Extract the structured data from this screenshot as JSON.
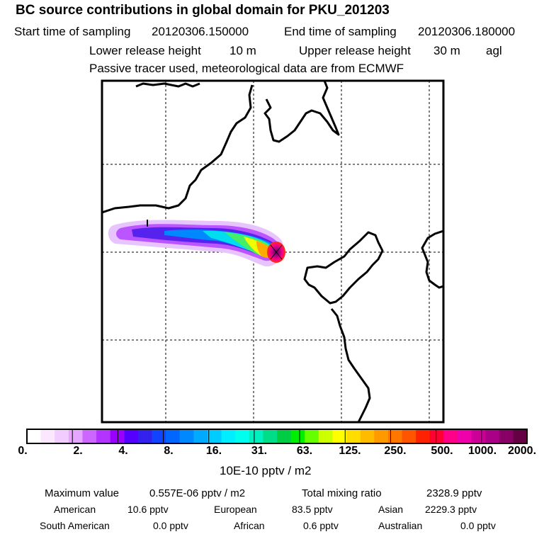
{
  "header": {
    "title": "BC  source contributions in global domain for PKU_201203",
    "start_label": "Start time of sampling",
    "start_value": "20120306.150000",
    "end_label": "End time of sampling",
    "end_value": "20120306.180000",
    "lower_label": "Lower release height",
    "lower_value": "10 m",
    "upper_label": "Upper release height",
    "upper_value": "30 m",
    "upper_unit": "agl",
    "note": "Passive tracer used, meteorological data are from ECMWF"
  },
  "legend": {
    "unit": "10E-10 pptv / m2",
    "tick_labels": [
      "0.",
      "2.",
      "4.",
      "8.",
      "16.",
      "31.",
      "63.",
      "125.",
      "250.",
      "500.",
      "1000.",
      "2000."
    ],
    "colors": [
      "#ffffff",
      "#fbe8ff",
      "#f3ccff",
      "#e6a6ff",
      "#cc66ff",
      "#b333ff",
      "#9900ff",
      "#5500ff",
      "#3322ee",
      "#1144ff",
      "#0066ff",
      "#0088ff",
      "#00aaff",
      "#00ccff",
      "#00eeff",
      "#00ffee",
      "#00f0c0",
      "#00dd88",
      "#00cc44",
      "#00ee00",
      "#66ff00",
      "#ccff00",
      "#ffff00",
      "#ffdd00",
      "#ffbb00",
      "#ff9900",
      "#ff7700",
      "#ff5500",
      "#ff2200",
      "#ff0033",
      "#ff0088",
      "#ee00aa",
      "#cc0099",
      "#aa0088",
      "#880066",
      "#660044"
    ]
  },
  "stats": {
    "max_label": "Maximum value",
    "max_value": "0.557E-06 pptv / m2",
    "total_label": "Total mixing ratio",
    "total_value": "2328.9 pptv",
    "regions": [
      {
        "name": "American",
        "value": "10.6 pptv"
      },
      {
        "name": "European",
        "value": "83.5 pptv"
      },
      {
        "name": "Asian",
        "value": "2229.3 pptv"
      },
      {
        "name": "South American",
        "value": "0.0 pptv"
      },
      {
        "name": "African",
        "value": "0.6 pptv"
      },
      {
        "name": "Australian",
        "value": "0.0 pptv"
      }
    ]
  }
}
